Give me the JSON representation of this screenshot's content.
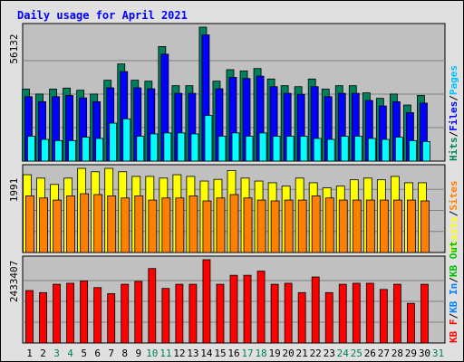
{
  "chart_data": {
    "title": "Daily usage for April 2021",
    "categories": [
      "1",
      "2",
      "3",
      "4",
      "5",
      "6",
      "7",
      "8",
      "9",
      "10",
      "11",
      "12",
      "13",
      "14",
      "15",
      "16",
      "17",
      "18",
      "19",
      "20",
      "21",
      "22",
      "23",
      "24",
      "25",
      "26",
      "27",
      "28",
      "29",
      "30",
      "31"
    ],
    "weekend_days": [
      "3",
      "4",
      "10",
      "11",
      "17",
      "18",
      "24",
      "25",
      "31"
    ],
    "panels": [
      {
        "id": "hits-panel",
        "type": "bar",
        "ymax_label": "56132",
        "ylim": [
          0,
          56132
        ],
        "legend": [
          {
            "text": "Hits",
            "color": "#00805c"
          },
          {
            "text": "/",
            "color": "#000000"
          },
          {
            "text": "Files",
            "color": "#0000ff"
          },
          {
            "text": "/",
            "color": "#000000"
          },
          {
            "text": "Pages",
            "color": "#00c0ff"
          }
        ],
        "series": [
          {
            "name": "Hits",
            "color": "#00805c",
            "values": [
              30200,
              28100,
              30200,
              30600,
              29700,
              28100,
              33900,
              40700,
              33900,
              33500,
              48000,
              31600,
              31600,
              56132,
              33500,
              38300,
              37800,
              38800,
              34400,
              31600,
              31200,
              34400,
              30200,
              31600,
              31600,
              28600,
              26300,
              28100,
              23500,
              27500,
              null
            ]
          },
          {
            "name": "Files",
            "color": "#0000ff",
            "values": [
              27000,
              24900,
              27000,
              27500,
              26500,
              24900,
              30700,
              37500,
              30700,
              30300,
              44800,
              28400,
              28400,
              52900,
              30300,
              35100,
              34600,
              35600,
              31200,
              28400,
              28000,
              31200,
              27000,
              28400,
              28400,
              25400,
              23100,
              24900,
              20300,
              24300,
              null
            ]
          },
          {
            "name": "Pages",
            "color": "#00ffff",
            "values": [
              10400,
              9100,
              8600,
              8600,
              10000,
              9500,
              15900,
              17700,
              10400,
              11400,
              11800,
              11800,
              11400,
              19100,
              10400,
              11800,
              10400,
              11800,
              10400,
              10400,
              10400,
              9500,
              9100,
              10400,
              10400,
              9500,
              9100,
              10000,
              8600,
              8200,
              null
            ]
          }
        ]
      },
      {
        "id": "sites-panel",
        "type": "bar",
        "ymax_label": "1991",
        "ylim": [
          0,
          1991
        ],
        "legend": [
          {
            "text": "Visits",
            "color": "#ffff00"
          },
          {
            "text": "/",
            "color": "#000000"
          },
          {
            "text": "Sites",
            "color": "#ff8000"
          }
        ],
        "series": [
          {
            "name": "Visits",
            "color": "#ffff00",
            "values": [
              1840,
              1760,
              1610,
              1760,
              1990,
              1910,
              1990,
              1910,
              1800,
              1800,
              1760,
              1840,
              1800,
              1690,
              1730,
              1940,
              1760,
              1690,
              1650,
              1570,
              1760,
              1650,
              1530,
              1570,
              1720,
              1760,
              1720,
              1800,
              1650,
              1650,
              null
            ]
          },
          {
            "name": "Sites",
            "color": "#ff8000",
            "values": [
              1340,
              1290,
              1240,
              1340,
              1390,
              1370,
              1340,
              1290,
              1340,
              1240,
              1290,
              1290,
              1340,
              1220,
              1290,
              1370,
              1290,
              1240,
              1220,
              1240,
              1240,
              1340,
              1290,
              1240,
              1240,
              1240,
              1240,
              1240,
              1240,
              1220,
              null
            ]
          }
        ]
      },
      {
        "id": "kbytes-panel",
        "type": "bar",
        "ymax_label": "2433407",
        "ylim": [
          0,
          2433407
        ],
        "legend": [
          {
            "text": "KB F",
            "color": "#ff0000"
          },
          {
            "text": "/",
            "color": "#000000"
          },
          {
            "text": "KB In",
            "color": "#0080ff"
          },
          {
            "text": "/",
            "color": "#000000"
          },
          {
            "text": "KB Out",
            "color": "#00c000"
          }
        ],
        "series": [
          {
            "name": "KB F",
            "color": "#ff0000",
            "values": [
              1533000,
              1473000,
              1716000,
              1746000,
              1813000,
              1619000,
              1442000,
              1716000,
              1800000,
              2176000,
              1595000,
              1716000,
              1716000,
              2433407,
              1716000,
              1979000,
              1979000,
              2101000,
              1716000,
              1746000,
              1473000,
              1930000,
              1473000,
              1716000,
              1746000,
              1746000,
              1565000,
              1716000,
              1158000,
              1716000,
              null
            ]
          }
        ]
      }
    ]
  }
}
